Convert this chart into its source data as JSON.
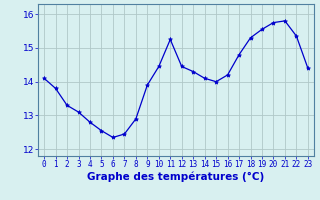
{
  "x": [
    0,
    1,
    2,
    3,
    4,
    5,
    6,
    7,
    8,
    9,
    10,
    11,
    12,
    13,
    14,
    15,
    16,
    17,
    18,
    19,
    20,
    21,
    22,
    23
  ],
  "y": [
    14.1,
    13.8,
    13.3,
    13.1,
    12.8,
    12.55,
    12.35,
    12.45,
    12.9,
    13.9,
    14.45,
    15.25,
    14.45,
    14.3,
    14.1,
    14.0,
    14.2,
    14.8,
    15.3,
    15.55,
    15.75,
    15.8,
    15.35,
    14.4
  ],
  "line_color": "#0000cc",
  "marker": "*",
  "marker_size": 3,
  "background_color": "#d8f0f0",
  "grid_color": "#b0c8c8",
  "xlabel": "Graphe des températures (°C)",
  "xlabel_color": "#0000cc",
  "tick_color": "#0000cc",
  "ylim": [
    11.8,
    16.3
  ],
  "xlim": [
    -0.5,
    23.5
  ],
  "yticks": [
    12,
    13,
    14,
    15,
    16
  ],
  "xticks": [
    0,
    1,
    2,
    3,
    4,
    5,
    6,
    7,
    8,
    9,
    10,
    11,
    12,
    13,
    14,
    15,
    16,
    17,
    18,
    19,
    20,
    21,
    22,
    23
  ],
  "xtick_labels": [
    "0",
    "1",
    "2",
    "3",
    "4",
    "5",
    "6",
    "7",
    "8",
    "9",
    "10",
    "11",
    "12",
    "13",
    "14",
    "15",
    "16",
    "17",
    "18",
    "19",
    "20",
    "21",
    "22",
    "23"
  ],
  "tick_fontsize": 5.5,
  "ytick_fontsize": 6.5,
  "xlabel_fontsize": 7.5
}
